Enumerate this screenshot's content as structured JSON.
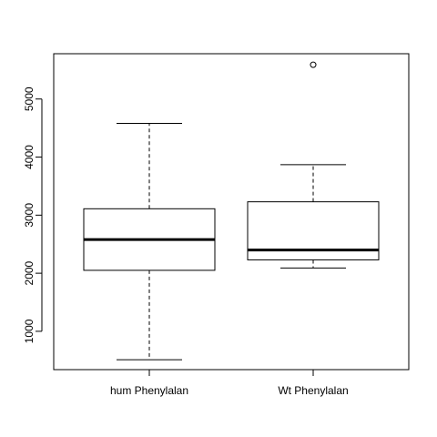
{
  "chart_data": {
    "type": "box",
    "title": "",
    "xlabel": "",
    "ylabel": "",
    "ylim": [
      340,
      5780
    ],
    "y_ticks": [
      1000,
      2000,
      3000,
      4000,
      5000
    ],
    "y_tick_labels": [
      "1000",
      "2000",
      "3000",
      "4000",
      "5000"
    ],
    "categories": [
      "hum Phenylalan",
      "Wt Phenylalan"
    ],
    "boxes": [
      {
        "name": "hum Phenylalan",
        "whisker_low": 510,
        "q1": 2050,
        "median": 2580,
        "q3": 3110,
        "whisker_high": 4580,
        "outliers": []
      },
      {
        "name": "Wt Phenylalan",
        "whisker_low": 2090,
        "q1": 2230,
        "median": 2400,
        "q3": 3230,
        "whisker_high": 3870,
        "outliers": [
          5590
        ]
      }
    ],
    "grid": false,
    "legend": "none"
  }
}
